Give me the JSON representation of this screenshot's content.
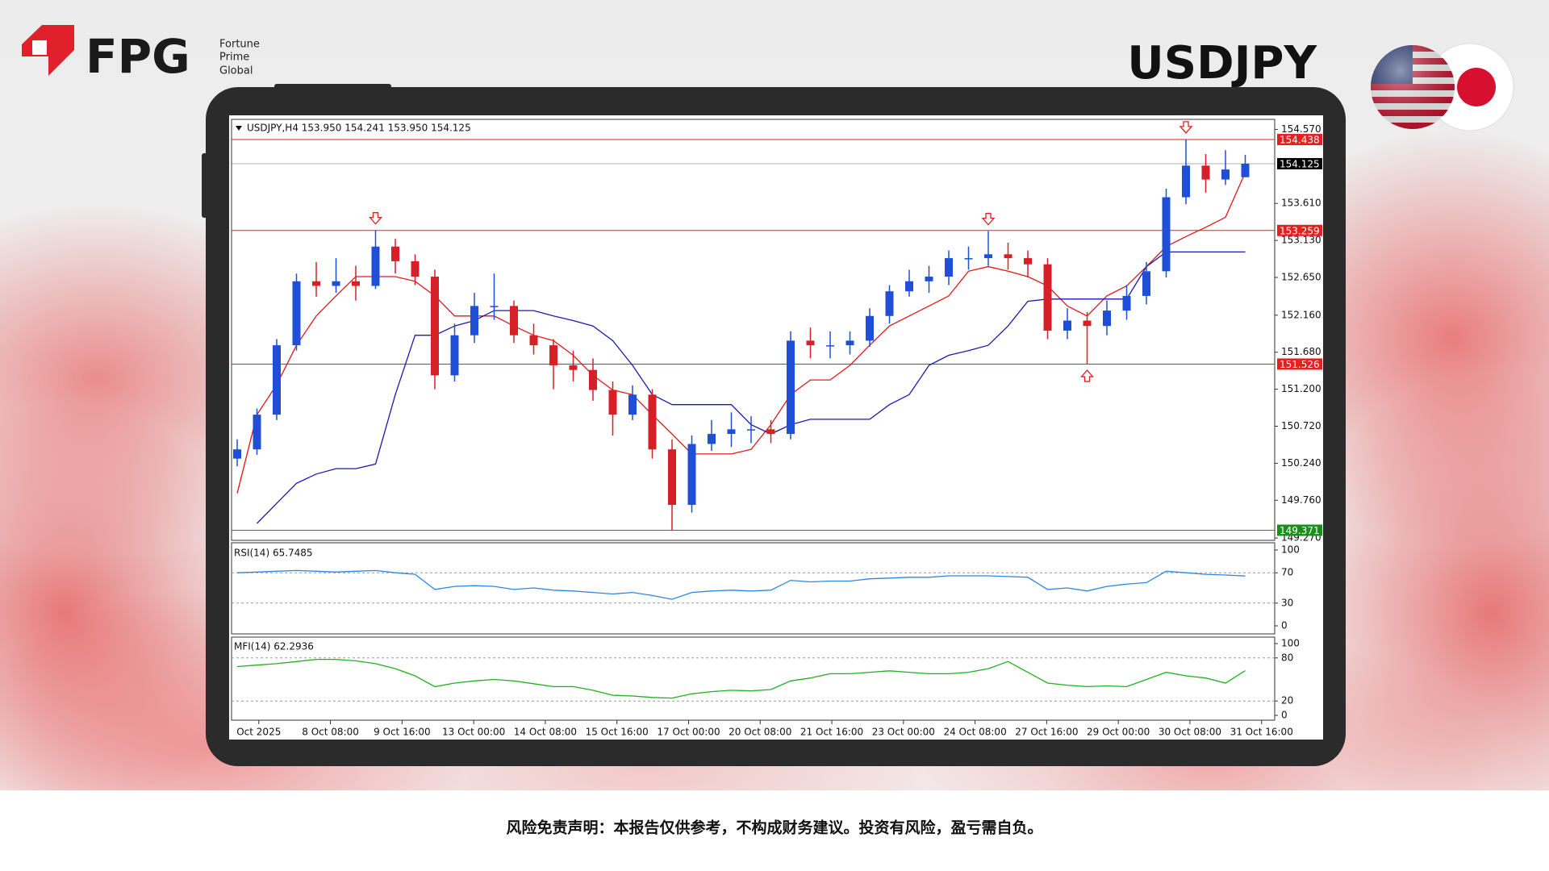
{
  "header": {
    "brand": "FPG",
    "brand_lines": [
      "Fortune",
      "Prime",
      "Global"
    ],
    "symbol": "USDJPY"
  },
  "footer": {
    "disclaimer": "风险免责声明：本报告仅供参考，不构成财务建议。投资有风险，盈亏需自负。"
  },
  "chart_data": [
    {
      "type": "candlestick",
      "header": "USDJPY,H4  153.950 154.241 153.950 154.125",
      "open": [
        150.3,
        150.42,
        150.87,
        151.77,
        152.6,
        152.54,
        152.6,
        152.54,
        153.05,
        152.86,
        152.66,
        151.38,
        151.9,
        152.28,
        152.28,
        151.9,
        151.77,
        151.51,
        151.45,
        151.19,
        150.87,
        151.13,
        150.42,
        149.7,
        150.49,
        150.62,
        150.68,
        150.68,
        150.62,
        151.83,
        151.77,
        151.77,
        151.83,
        152.15,
        152.47,
        152.6,
        152.66,
        152.9,
        152.9,
        152.95,
        152.9,
        152.82,
        151.96,
        152.09,
        152.02,
        152.22,
        152.41,
        152.73,
        153.69,
        154.1,
        153.92,
        153.95
      ],
      "high": [
        150.55,
        150.95,
        151.85,
        152.7,
        152.85,
        152.9,
        152.8,
        153.26,
        153.15,
        152.95,
        152.75,
        152.05,
        152.45,
        152.7,
        152.35,
        152.05,
        151.85,
        151.7,
        151.6,
        151.3,
        151.25,
        151.2,
        150.55,
        150.6,
        150.8,
        150.9,
        150.85,
        150.8,
        151.95,
        152.0,
        151.95,
        151.95,
        152.25,
        152.55,
        152.75,
        152.8,
        153.0,
        153.05,
        153.25,
        153.1,
        153.0,
        152.9,
        152.25,
        152.2,
        152.35,
        152.55,
        152.85,
        153.8,
        154.44,
        154.25,
        154.3,
        154.241
      ],
      "low": [
        150.2,
        150.35,
        150.8,
        151.7,
        152.4,
        152.45,
        152.35,
        152.5,
        152.7,
        152.55,
        151.2,
        151.3,
        151.8,
        152.1,
        151.8,
        151.65,
        151.2,
        151.3,
        151.05,
        150.6,
        150.8,
        150.3,
        149.37,
        149.6,
        150.4,
        150.45,
        150.5,
        150.5,
        150.55,
        151.6,
        151.6,
        151.65,
        151.75,
        152.05,
        152.4,
        152.45,
        152.55,
        152.75,
        152.8,
        152.75,
        152.65,
        151.85,
        151.85,
        151.53,
        151.9,
        152.1,
        152.3,
        152.65,
        153.6,
        153.75,
        153.85,
        153.95
      ],
      "close": [
        150.42,
        150.87,
        151.77,
        152.6,
        152.54,
        152.6,
        152.54,
        153.05,
        152.86,
        152.66,
        151.38,
        151.9,
        152.28,
        152.28,
        151.9,
        151.77,
        151.51,
        151.45,
        151.19,
        150.87,
        151.13,
        150.42,
        149.7,
        150.49,
        150.62,
        150.68,
        150.68,
        150.62,
        151.83,
        151.77,
        151.77,
        151.83,
        152.15,
        152.47,
        152.6,
        152.66,
        152.9,
        152.9,
        152.95,
        152.9,
        152.82,
        151.96,
        152.09,
        152.02,
        152.22,
        152.41,
        152.73,
        153.69,
        154.1,
        153.92,
        154.05,
        154.125
      ],
      "up_color": "#1f4fd6",
      "down_color": "#d61f26",
      "series": [
        {
          "color": "#e01818",
          "values": [
            149.85,
            150.87,
            151.26,
            151.77,
            152.15,
            152.41,
            152.66,
            152.66,
            152.66,
            152.6,
            152.41,
            152.15,
            152.15,
            152.15,
            152.02,
            151.9,
            151.83,
            151.64,
            151.38,
            151.19,
            151.13,
            150.87,
            150.62,
            150.36,
            150.36,
            150.36,
            150.42,
            150.74,
            151.13,
            151.32,
            151.32,
            151.51,
            151.77,
            152.02,
            152.15,
            152.28,
            152.41,
            152.73,
            152.79,
            152.73,
            152.66,
            152.54,
            152.28,
            152.15,
            152.41,
            152.54,
            152.79,
            153.05,
            153.18,
            153.3,
            153.43,
            154.01
          ]
        },
        {
          "color": "#1a1ab0",
          "values": [
            null,
            149.46,
            149.72,
            149.98,
            150.1,
            150.17,
            150.17,
            150.23,
            151.13,
            151.9,
            151.9,
            152.02,
            152.09,
            152.22,
            152.22,
            152.22,
            152.15,
            152.09,
            152.02,
            151.83,
            151.51,
            151.13,
            151.0,
            151.0,
            151.0,
            151.0,
            150.74,
            150.62,
            150.74,
            150.81,
            150.81,
            150.81,
            150.81,
            151.0,
            151.13,
            151.51,
            151.64,
            151.7,
            151.77,
            152.02,
            152.34,
            152.37,
            152.37,
            152.37,
            152.37,
            152.37,
            152.79,
            152.98,
            152.98,
            152.98,
            152.98,
            152.98
          ]
        }
      ],
      "levels": [
        {
          "value": 154.438,
          "color": "#e52020"
        },
        {
          "value": 154.125,
          "color": "#000000"
        },
        {
          "value": 153.259,
          "color": "#e52020"
        },
        {
          "value": 151.526,
          "color": "#e52020"
        },
        {
          "value": 149.371,
          "color": "#1a8f1a"
        }
      ],
      "fractals_down": [
        7,
        38,
        48
      ],
      "fractals_up": [
        43
      ],
      "ylim": [
        149.24,
        154.7
      ],
      "yticks": [
        {
          "value": 154.57,
          "label": "154.570"
        },
        {
          "value": 153.61,
          "label": "153.610"
        },
        {
          "value": 153.13,
          "label": "153.130"
        },
        {
          "value": 152.65,
          "label": "152.650"
        },
        {
          "value": 152.16,
          "label": "152.160"
        },
        {
          "value": 151.68,
          "label": "151.680"
        },
        {
          "value": 151.2,
          "label": "151.200"
        },
        {
          "value": 150.72,
          "label": "150.720"
        },
        {
          "value": 150.24,
          "label": "150.240"
        },
        {
          "value": 149.76,
          "label": "149.760"
        },
        {
          "value": 149.27,
          "label": "149.270"
        }
      ],
      "x_labels": [
        "Oct 2025",
        "8 Oct 08:00",
        "9 Oct 16:00",
        "13 Oct 00:00",
        "14 Oct 08:00",
        "15 Oct 16:00",
        "17 Oct 00:00",
        "20 Oct 08:00",
        "21 Oct 16:00",
        "23 Oct 00:00",
        "24 Oct 08:00",
        "27 Oct 16:00",
        "29 Oct 00:00",
        "30 Oct 08:00",
        "31 Oct 16:00"
      ]
    },
    {
      "type": "line",
      "label": "RSI(14) 65.7485",
      "ylim": [
        0,
        100
      ],
      "yticks": [
        0,
        30,
        70,
        100
      ],
      "series": [
        {
          "color": "#2f86e0",
          "values": [
            70,
            71,
            72,
            73,
            72,
            71,
            72,
            73,
            70,
            68,
            48,
            52,
            53,
            52,
            48,
            50,
            47,
            46,
            44,
            42,
            44,
            40,
            35,
            44,
            46,
            47,
            46,
            47,
            60,
            58,
            59,
            59,
            62,
            63,
            64,
            64,
            66,
            66,
            66,
            65,
            64,
            48,
            50,
            46,
            52,
            55,
            57,
            72,
            70,
            68,
            67,
            65.7485
          ]
        }
      ]
    },
    {
      "type": "line",
      "label": "MFI(14) 62.2936",
      "ylim": [
        0,
        100
      ],
      "yticks": [
        0,
        20,
        80,
        100
      ],
      "series": [
        {
          "color": "#22b022",
          "values": [
            68,
            70,
            72,
            75,
            78,
            78,
            76,
            72,
            65,
            55,
            40,
            45,
            48,
            50,
            48,
            44,
            40,
            40,
            35,
            28,
            27,
            25,
            24,
            30,
            33,
            35,
            34,
            36,
            48,
            52,
            58,
            58,
            60,
            62,
            60,
            58,
            58,
            60,
            65,
            75,
            60,
            45,
            42,
            40,
            41,
            40,
            50,
            60,
            55,
            52,
            45,
            62.2936
          ]
        }
      ]
    }
  ]
}
